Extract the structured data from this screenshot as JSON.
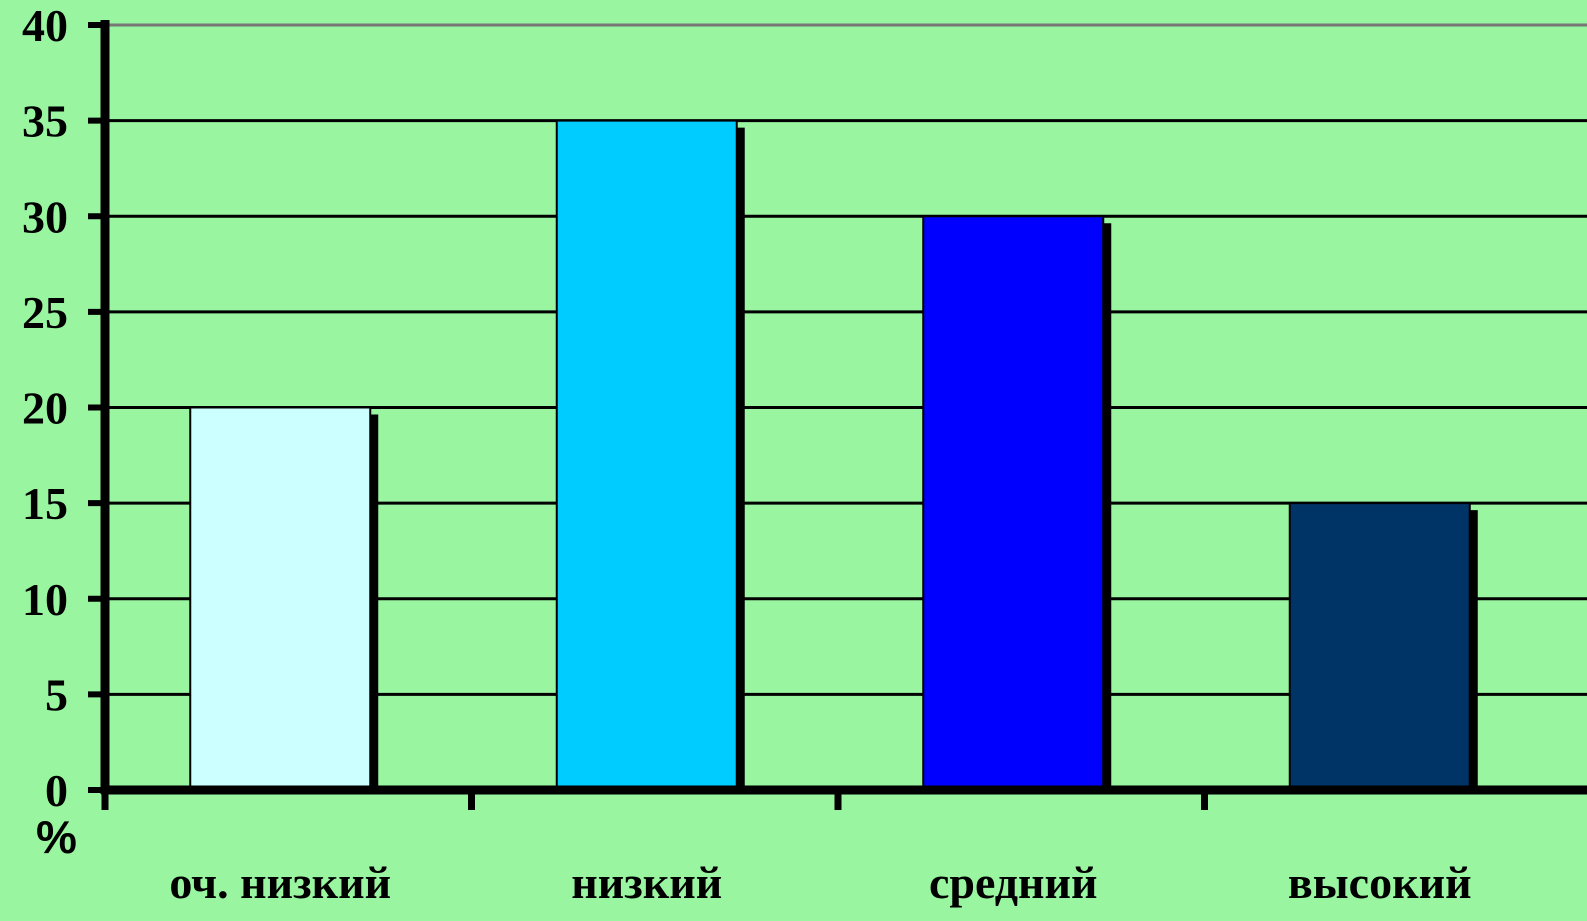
{
  "chart_data": {
    "type": "bar",
    "categories": [
      "оч. низкий",
      "низкий",
      "средний",
      "высокий"
    ],
    "values": [
      20,
      35,
      30,
      15
    ],
    "colors": [
      "#ccffff",
      "#00ccff",
      "#0000ff",
      "#003366"
    ],
    "ylim": [
      0,
      40
    ],
    "yticks": [
      0,
      5,
      10,
      15,
      20,
      25,
      30,
      35,
      40
    ],
    "yunit": "%",
    "grid": true,
    "background": "#99f5a0",
    "legend": "none"
  }
}
